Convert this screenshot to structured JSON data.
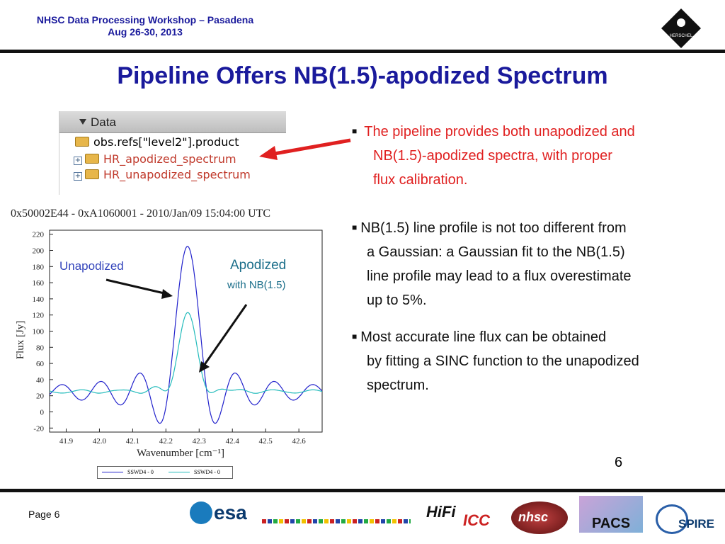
{
  "header": {
    "line1": "NHSC Data Processing Workshop – Pasadena",
    "line2": "Aug 26-30, 2013",
    "logo_text": "HERSCHEL"
  },
  "slide": {
    "title": "Pipeline Offers NB(1.5)-apodized Spectrum",
    "number": "6"
  },
  "data_panel": {
    "header": "Data",
    "root": "obs.refs[\"level2\"].product",
    "items": [
      "HR_apodized_spectrum",
      "HR_unapodized_spectrum"
    ]
  },
  "bullets": [
    {
      "color": "#e02020",
      "lines": [
        "The pipeline provides both unapodized and",
        "NB(1.5)-apodized spectra, with proper",
        "flux calibration."
      ]
    },
    {
      "color": "#111111",
      "lines": [
        "NB(1.5) line profile is not too different from",
        "a Gaussian:  a Gaussian fit to the NB(1.5)",
        "line profile may lead to a flux overestimate",
        "up to 5%."
      ]
    },
    {
      "color": "#111111",
      "lines": [
        "Most accurate line flux can be obtained",
        "by fitting a SINC function to the unapodized",
        "spectrum."
      ]
    }
  ],
  "annotations": {
    "unapodized": "Unapodized",
    "apodized": "Apodized",
    "apodized_sub": "with NB(1.5)"
  },
  "chart_data": {
    "type": "line",
    "title": "0x50002E44 - 0xA1060001 - 2010/Jan/09 15:04:00 UTC",
    "xlabel": "Wavenumber [cm⁻¹]",
    "ylabel": "Flux [Jy]",
    "xlim": [
      41.85,
      42.67
    ],
    "ylim": [
      -25,
      225
    ],
    "xticks": [
      "41.9",
      "42.0",
      "42.1",
      "42.2",
      "42.3",
      "42.4",
      "42.5",
      "42.6"
    ],
    "yticks": [
      "-20",
      "0",
      "20",
      "40",
      "60",
      "80",
      "100",
      "120",
      "140",
      "160",
      "180",
      "200",
      "220"
    ],
    "series": [
      {
        "name": "SSWD4 - 0",
        "color": "#2222cc",
        "peak_x": 42.265,
        "peak_y": 205,
        "baseline": 25
      },
      {
        "name": "SSWD4 - 0",
        "color": "#22bbbb",
        "peak_x": 42.265,
        "peak_y": 123,
        "baseline": 25
      }
    ]
  },
  "footer": {
    "page_label": "Page 6",
    "logos": [
      "esa",
      "HiFi",
      "ICC",
      "nhsc",
      "PACS",
      "SPIRE"
    ]
  },
  "colors": {
    "title_blue": "#1a1a9c",
    "bullet_red": "#e02020",
    "arrow_red": "#e02020"
  }
}
